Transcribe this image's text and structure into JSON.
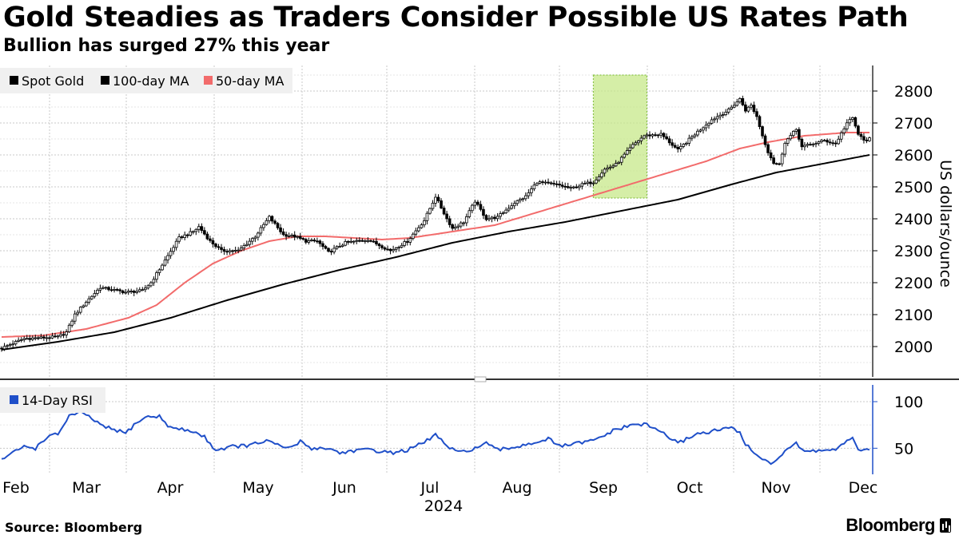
{
  "header": {
    "title": "Gold Steadies as Traders Consider Possible US Rates Path",
    "subtitle": "Bullion has surged 27% this year"
  },
  "footer": {
    "source": "Source:  Bloomberg",
    "brand": "Bloomberg"
  },
  "colors": {
    "candle": "#000000",
    "ma100": "#000000",
    "ma50": "#f26b6b",
    "rsi": "#1f4fc9",
    "highlight_fill": "#c7e88a",
    "highlight_border": "#8bc34a",
    "grid": "#c8c8c8"
  },
  "chart_data": [
    {
      "type": "candlestick",
      "title": "Gold Steadies as Traders Consider Possible US Rates Path",
      "subtitle": "Bullion has surged 27% this year",
      "ylabel": "US dollars/ounce",
      "ylim": [
        1905,
        2880
      ],
      "yticks": [
        2000,
        2100,
        2200,
        2300,
        2400,
        2500,
        2600,
        2700,
        2800
      ],
      "grid": true,
      "legend": [
        {
          "name": "Spot Gold",
          "color": "#000000"
        },
        {
          "name": "100-day MA",
          "color": "#000000"
        },
        {
          "name": "50-day MA",
          "color": "#f26b6b"
        }
      ],
      "legend_position": "top-left",
      "x_months": [
        "Feb",
        "Mar",
        "Apr",
        "May",
        "Jun",
        "Jul",
        "Aug",
        "Sep",
        "Oct",
        "Nov",
        "Dec"
      ],
      "x_year": "2024",
      "highlight": {
        "from_day": 210,
        "to_day": 229,
        "ymin": 2465,
        "ymax": 2850
      },
      "candle_keypoints": [
        [
          0,
          1995
        ],
        [
          8,
          2025
        ],
        [
          20,
          2030
        ],
        [
          23,
          2045
        ],
        [
          26,
          2100
        ],
        [
          30,
          2140
        ],
        [
          35,
          2185
        ],
        [
          44,
          2170
        ],
        [
          50,
          2175
        ],
        [
          53,
          2200
        ],
        [
          58,
          2270
        ],
        [
          63,
          2340
        ],
        [
          68,
          2360
        ],
        [
          70,
          2375
        ],
        [
          74,
          2330
        ],
        [
          78,
          2300
        ],
        [
          84,
          2300
        ],
        [
          90,
          2345
        ],
        [
          95,
          2405
        ],
        [
          100,
          2350
        ],
        [
          104,
          2345
        ],
        [
          108,
          2330
        ],
        [
          112,
          2330
        ],
        [
          116,
          2295
        ],
        [
          122,
          2325
        ],
        [
          130,
          2335
        ],
        [
          138,
          2300
        ],
        [
          144,
          2330
        ],
        [
          150,
          2395
        ],
        [
          154,
          2470
        ],
        [
          158,
          2400
        ],
        [
          160,
          2370
        ],
        [
          164,
          2390
        ],
        [
          168,
          2455
        ],
        [
          172,
          2400
        ],
        [
          176,
          2405
        ],
        [
          182,
          2450
        ],
        [
          186,
          2470
        ],
        [
          190,
          2515
        ],
        [
          194,
          2510
        ],
        [
          198,
          2505
        ],
        [
          202,
          2495
        ],
        [
          207,
          2510
        ],
        [
          210,
          2515
        ],
        [
          214,
          2555
        ],
        [
          218,
          2570
        ],
        [
          224,
          2630
        ],
        [
          228,
          2660
        ],
        [
          234,
          2665
        ],
        [
          240,
          2615
        ],
        [
          246,
          2665
        ],
        [
          252,
          2710
        ],
        [
          258,
          2740
        ],
        [
          262,
          2775
        ],
        [
          264,
          2740
        ],
        [
          266,
          2755
        ],
        [
          268,
          2720
        ],
        [
          270,
          2660
        ],
        [
          272,
          2610
        ],
        [
          274,
          2575
        ],
        [
          276,
          2570
        ],
        [
          278,
          2640
        ],
        [
          280,
          2660
        ],
        [
          282,
          2680
        ],
        [
          284,
          2625
        ],
        [
          288,
          2635
        ],
        [
          292,
          2645
        ],
        [
          296,
          2635
        ],
        [
          300,
          2700
        ],
        [
          302,
          2715
        ],
        [
          304,
          2665
        ],
        [
          306,
          2645
        ],
        [
          308,
          2650
        ]
      ],
      "ma50_keypoints": [
        [
          0,
          2030
        ],
        [
          15,
          2035
        ],
        [
          30,
          2055
        ],
        [
          45,
          2090
        ],
        [
          55,
          2130
        ],
        [
          65,
          2200
        ],
        [
          75,
          2260
        ],
        [
          85,
          2300
        ],
        [
          95,
          2330
        ],
        [
          105,
          2345
        ],
        [
          115,
          2345
        ],
        [
          125,
          2340
        ],
        [
          135,
          2335
        ],
        [
          145,
          2340
        ],
        [
          160,
          2360
        ],
        [
          175,
          2380
        ],
        [
          190,
          2420
        ],
        [
          205,
          2460
        ],
        [
          220,
          2500
        ],
        [
          235,
          2540
        ],
        [
          250,
          2580
        ],
        [
          262,
          2620
        ],
        [
          272,
          2640
        ],
        [
          285,
          2660
        ],
        [
          300,
          2670
        ],
        [
          308,
          2670
        ]
      ],
      "ma100_keypoints": [
        [
          0,
          1990
        ],
        [
          20,
          2015
        ],
        [
          40,
          2045
        ],
        [
          60,
          2090
        ],
        [
          80,
          2145
        ],
        [
          100,
          2195
        ],
        [
          120,
          2240
        ],
        [
          140,
          2280
        ],
        [
          160,
          2325
        ],
        [
          180,
          2360
        ],
        [
          200,
          2390
        ],
        [
          220,
          2425
        ],
        [
          240,
          2460
        ],
        [
          260,
          2510
        ],
        [
          275,
          2545
        ],
        [
          290,
          2570
        ],
        [
          308,
          2600
        ]
      ]
    },
    {
      "type": "line",
      "series": [
        {
          "name": "14-Day RSI",
          "color": "#1f4fc9"
        }
      ],
      "ylim": [
        22,
        118
      ],
      "yticks": [
        50,
        100
      ],
      "legend_position": "top-left",
      "rsi_keypoints": [
        [
          0,
          38
        ],
        [
          4,
          45
        ],
        [
          8,
          52
        ],
        [
          12,
          50
        ],
        [
          16,
          62
        ],
        [
          20,
          65
        ],
        [
          24,
          85
        ],
        [
          28,
          88
        ],
        [
          32,
          82
        ],
        [
          36,
          73
        ],
        [
          40,
          70
        ],
        [
          44,
          66
        ],
        [
          48,
          78
        ],
        [
          52,
          84
        ],
        [
          56,
          84
        ],
        [
          60,
          72
        ],
        [
          64,
          70
        ],
        [
          68,
          68
        ],
        [
          72,
          62
        ],
        [
          76,
          48
        ],
        [
          82,
          52
        ],
        [
          88,
          53
        ],
        [
          94,
          58
        ],
        [
          98,
          53
        ],
        [
          102,
          50
        ],
        [
          106,
          57
        ],
        [
          110,
          50
        ],
        [
          116,
          50
        ],
        [
          120,
          45
        ],
        [
          126,
          48
        ],
        [
          132,
          48
        ],
        [
          138,
          45
        ],
        [
          144,
          48
        ],
        [
          150,
          56
        ],
        [
          154,
          65
        ],
        [
          158,
          52
        ],
        [
          162,
          45
        ],
        [
          168,
          50
        ],
        [
          172,
          55
        ],
        [
          176,
          48
        ],
        [
          180,
          50
        ],
        [
          186,
          54
        ],
        [
          190,
          57
        ],
        [
          194,
          60
        ],
        [
          198,
          52
        ],
        [
          204,
          55
        ],
        [
          210,
          58
        ],
        [
          214,
          64
        ],
        [
          218,
          70
        ],
        [
          224,
          75
        ],
        [
          228,
          76
        ],
        [
          234,
          68
        ],
        [
          240,
          55
        ],
        [
          246,
          65
        ],
        [
          252,
          68
        ],
        [
          258,
          72
        ],
        [
          262,
          68
        ],
        [
          264,
          54
        ],
        [
          268,
          43
        ],
        [
          272,
          35
        ],
        [
          274,
          33
        ],
        [
          278,
          48
        ],
        [
          282,
          56
        ],
        [
          284,
          47
        ],
        [
          288,
          47
        ],
        [
          292,
          48
        ],
        [
          296,
          48
        ],
        [
          300,
          57
        ],
        [
          302,
          60
        ],
        [
          304,
          50
        ],
        [
          306,
          47
        ],
        [
          308,
          48
        ]
      ]
    }
  ]
}
